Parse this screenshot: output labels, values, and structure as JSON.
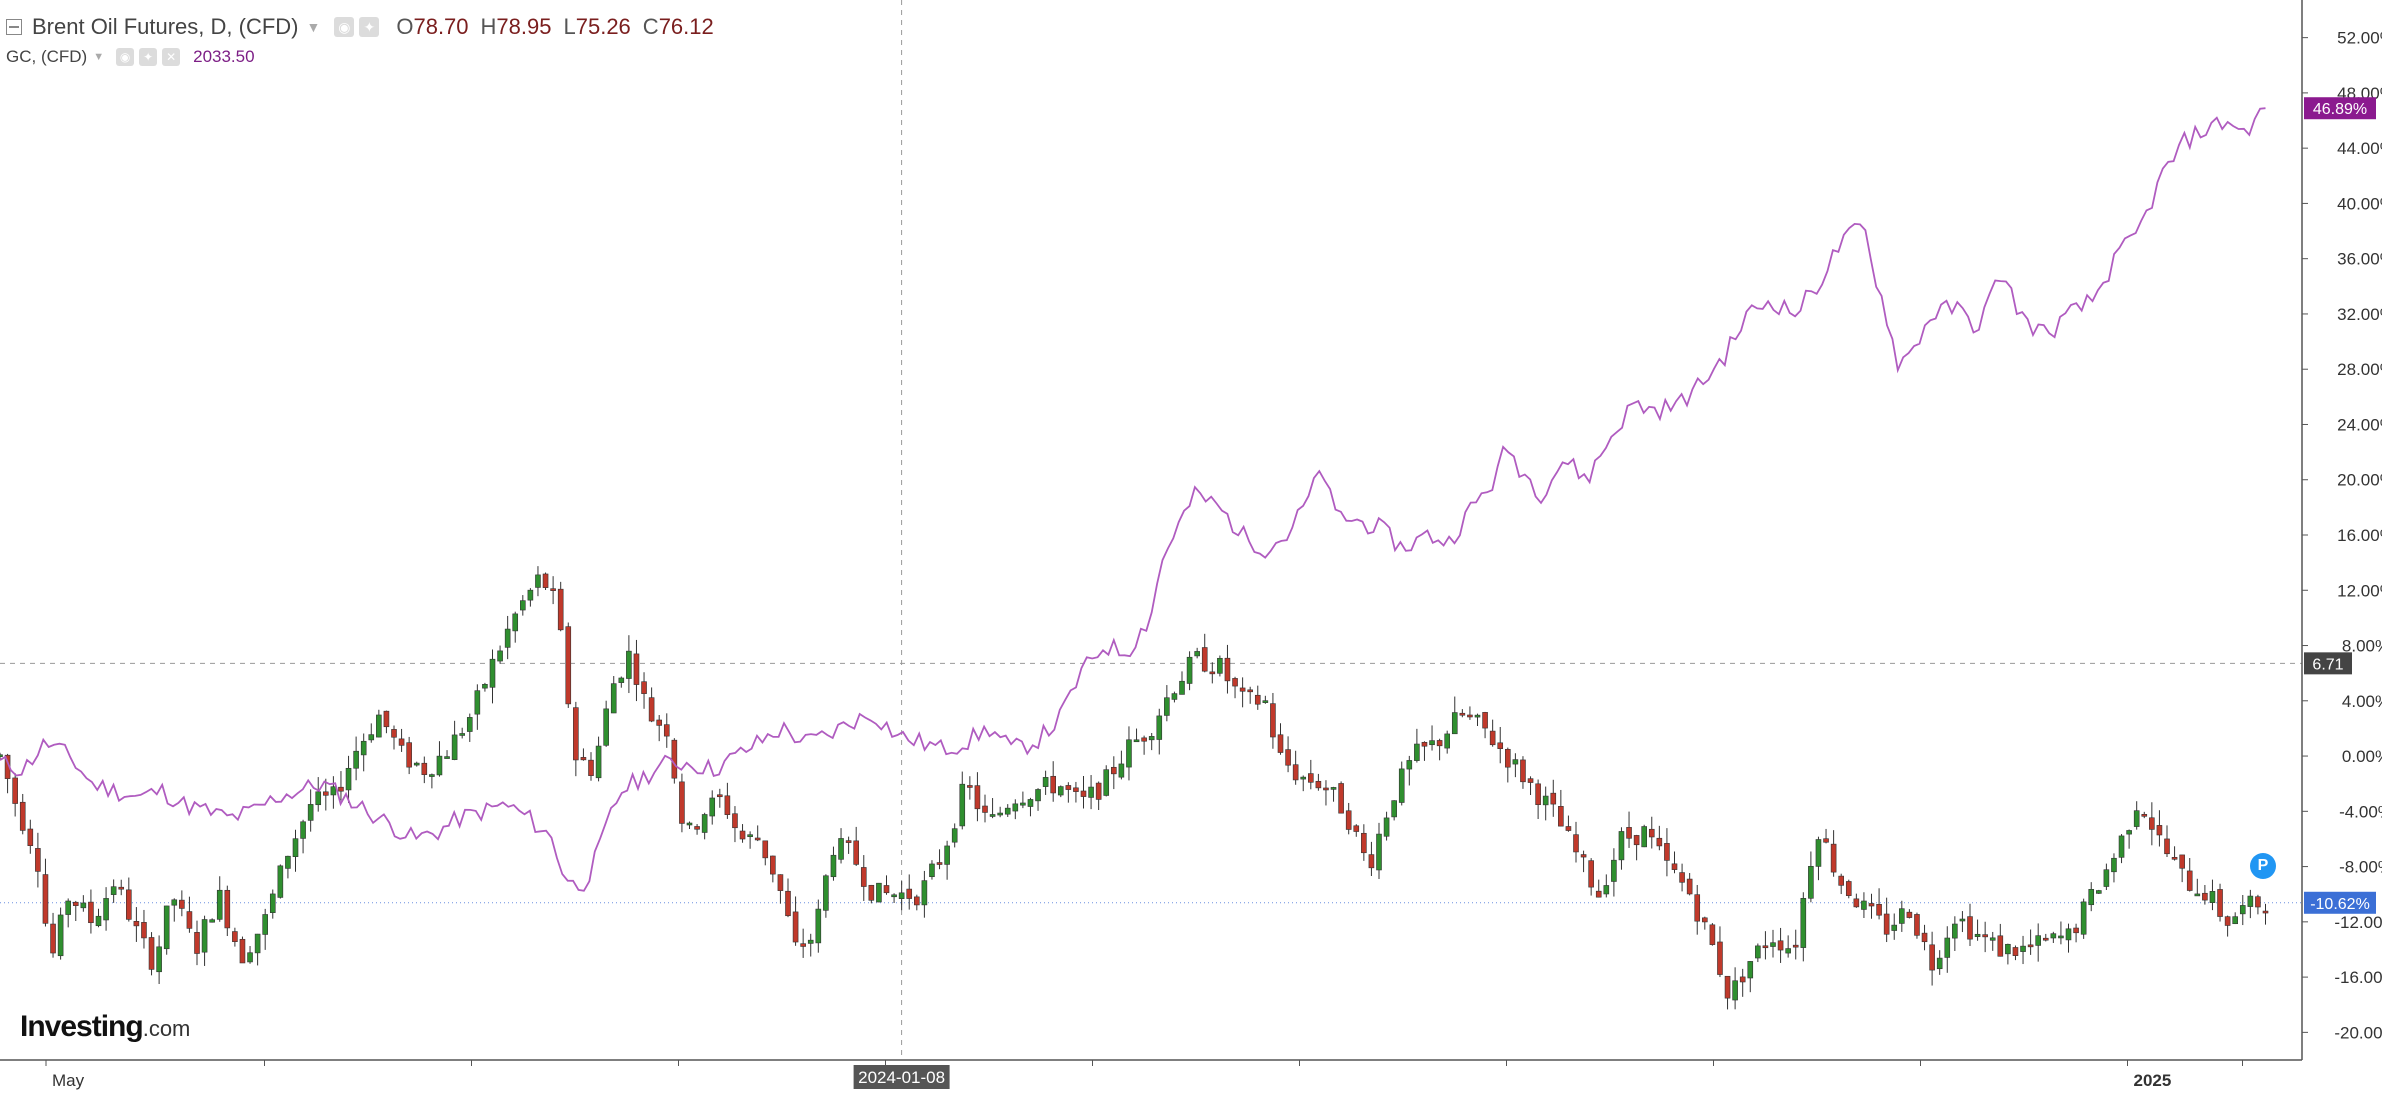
{
  "legend": {
    "main_symbol": "Brent Oil Futures, D, (CFD)",
    "o_label": "O",
    "o_value": "78.70",
    "h_label": "H",
    "h_value": "78.95",
    "l_label": "L",
    "l_value": "75.26",
    "c_label": "C",
    "c_value": "76.12",
    "compare_symbol": "GC, (CFD)",
    "compare_value": "2033.50"
  },
  "logo": {
    "main": "Investing",
    "suffix": ".com"
  },
  "marker": {
    "label": "P"
  },
  "colors": {
    "up": "#2f8f2f",
    "down": "#c0392b",
    "compare_line": "#b05cc0",
    "compare_tag": "#8b1a8f",
    "current_tag": "#3b6fd6",
    "crosshair_tag": "#444444",
    "grid": "#d8d8d8"
  },
  "chart_data": {
    "type": "line",
    "title": "Brent Oil Futures, D, (CFD)",
    "y_axis": {
      "unit": "percent change",
      "ylim": [
        -22,
        54
      ],
      "ticks": [
        "52.00%",
        "48.00%",
        "44.00%",
        "40.00%",
        "36.00%",
        "32.00%",
        "28.00%",
        "24.00%",
        "20.00%",
        "16.00%",
        "12.00%",
        "8.00%",
        "4.00%",
        "0.00%",
        "-4.00%",
        "-8.00%",
        "-12.00%",
        "-16.00%",
        "-20.00%"
      ],
      "tick_values": [
        52,
        48,
        44,
        40,
        36,
        32,
        28,
        24,
        20,
        16,
        12,
        8,
        4,
        0,
        -4,
        -8,
        -12,
        -16,
        -20
      ]
    },
    "x_axis": {
      "labels": [
        {
          "text": "May",
          "pos": 0.02
        },
        {
          "text": "2024-01-08",
          "pos": 0.392,
          "highlight": true
        },
        {
          "text": "2025",
          "pos": 0.925
        }
      ],
      "ticks": [
        0.02,
        0.115,
        0.205,
        0.295,
        0.385,
        0.475,
        0.565,
        0.655,
        0.745,
        0.835,
        0.925,
        0.975
      ]
    },
    "crosshair": {
      "x_pos": 0.392,
      "y_value": 6.71,
      "label": "6.71"
    },
    "last_values": [
      {
        "name": "GC, (CFD)",
        "value": 46.89,
        "label": "46.89%"
      },
      {
        "name": "Brent Oil Futures, D, (CFD)",
        "value": -10.62,
        "label": "-10.62%"
      }
    ],
    "series": [
      {
        "name": "Brent Oil Futures, D, (CFD)",
        "type": "candlestick",
        "path": [
          [
            0.0,
            0.0
          ],
          [
            0.008,
            -4.0
          ],
          [
            0.016,
            -7.0
          ],
          [
            0.022,
            -15.0
          ],
          [
            0.03,
            -10.0
          ],
          [
            0.04,
            -12.0
          ],
          [
            0.05,
            -9.0
          ],
          [
            0.06,
            -13.0
          ],
          [
            0.067,
            -15.0
          ],
          [
            0.075,
            -10.0
          ],
          [
            0.085,
            -14.0
          ],
          [
            0.095,
            -10.0
          ],
          [
            0.105,
            -14.5
          ],
          [
            0.115,
            -12.0
          ],
          [
            0.125,
            -7.0
          ],
          [
            0.135,
            -3.5
          ],
          [
            0.145,
            -3.0
          ],
          [
            0.155,
            0.5
          ],
          [
            0.165,
            3.0
          ],
          [
            0.175,
            0.0
          ],
          [
            0.185,
            -1.0
          ],
          [
            0.195,
            0.5
          ],
          [
            0.205,
            3.0
          ],
          [
            0.215,
            7.0
          ],
          [
            0.225,
            10.5
          ],
          [
            0.235,
            13.0
          ],
          [
            0.242,
            11.0
          ],
          [
            0.25,
            0.0
          ],
          [
            0.258,
            -1.0
          ],
          [
            0.266,
            5.0
          ],
          [
            0.274,
            7.5
          ],
          [
            0.282,
            3.0
          ],
          [
            0.29,
            2.0
          ],
          [
            0.298,
            -6.0
          ],
          [
            0.306,
            -4.0
          ],
          [
            0.314,
            -3.0
          ],
          [
            0.322,
            -6.0
          ],
          [
            0.33,
            -6.0
          ],
          [
            0.338,
            -9.0
          ],
          [
            0.346,
            -14.0
          ],
          [
            0.354,
            -13.0
          ],
          [
            0.362,
            -6.5
          ],
          [
            0.37,
            -7.0
          ],
          [
            0.38,
            -10.0
          ],
          [
            0.39,
            -10.0
          ],
          [
            0.4,
            -10.0
          ],
          [
            0.41,
            -7.0
          ],
          [
            0.42,
            -2.0
          ],
          [
            0.43,
            -5.0
          ],
          [
            0.44,
            -3.0
          ],
          [
            0.45,
            -2.5
          ],
          [
            0.46,
            -2.0
          ],
          [
            0.47,
            -3.5
          ],
          [
            0.48,
            -2.0
          ],
          [
            0.49,
            0.5
          ],
          [
            0.5,
            2.0
          ],
          [
            0.51,
            5.0
          ],
          [
            0.52,
            7.0
          ],
          [
            0.53,
            6.5
          ],
          [
            0.54,
            4.0
          ],
          [
            0.55,
            4.0
          ],
          [
            0.556,
            0.0
          ],
          [
            0.565,
            -1.5
          ],
          [
            0.575,
            -2.0
          ],
          [
            0.585,
            -4.0
          ],
          [
            0.595,
            -8.0
          ],
          [
            0.605,
            -3.0
          ],
          [
            0.615,
            0.0
          ],
          [
            0.625,
            1.0
          ],
          [
            0.635,
            3.0
          ],
          [
            0.645,
            2.0
          ],
          [
            0.655,
            0.0
          ],
          [
            0.665,
            -2.0
          ],
          [
            0.675,
            -4.0
          ],
          [
            0.685,
            -7.0
          ],
          [
            0.695,
            -10.0
          ],
          [
            0.705,
            -6.0
          ],
          [
            0.715,
            -5.5
          ],
          [
            0.725,
            -8.0
          ],
          [
            0.735,
            -10.0
          ],
          [
            0.745,
            -14.0
          ],
          [
            0.752,
            -17.5
          ],
          [
            0.76,
            -15.0
          ],
          [
            0.77,
            -13.0
          ],
          [
            0.78,
            -14.0
          ],
          [
            0.79,
            -5.0
          ],
          [
            0.8,
            -9.0
          ],
          [
            0.81,
            -11.0
          ],
          [
            0.82,
            -12.5
          ],
          [
            0.83,
            -11.0
          ],
          [
            0.84,
            -15.0
          ],
          [
            0.85,
            -11.5
          ],
          [
            0.86,
            -13.0
          ],
          [
            0.87,
            -14.0
          ],
          [
            0.88,
            -14.0
          ],
          [
            0.89,
            -13.5
          ],
          [
            0.9,
            -13.0
          ],
          [
            0.91,
            -10.0
          ],
          [
            0.92,
            -7.0
          ],
          [
            0.93,
            -3.0
          ],
          [
            0.94,
            -6.5
          ],
          [
            0.95,
            -9.0
          ],
          [
            0.96,
            -10.0
          ],
          [
            0.968,
            -12.0
          ],
          [
            0.976,
            -11.0
          ],
          [
            0.985,
            -10.5
          ]
        ]
      },
      {
        "name": "GC, (CFD)",
        "type": "line",
        "path": [
          [
            0.0,
            -0.5
          ],
          [
            0.01,
            -1.0
          ],
          [
            0.02,
            1.0
          ],
          [
            0.03,
            0.0
          ],
          [
            0.04,
            -2.0
          ],
          [
            0.05,
            -2.5
          ],
          [
            0.06,
            -3.0
          ],
          [
            0.07,
            -2.5
          ],
          [
            0.08,
            -3.5
          ],
          [
            0.09,
            -4.0
          ],
          [
            0.1,
            -4.5
          ],
          [
            0.11,
            -4.0
          ],
          [
            0.12,
            -3.0
          ],
          [
            0.13,
            -2.5
          ],
          [
            0.14,
            -2.0
          ],
          [
            0.15,
            -3.0
          ],
          [
            0.16,
            -4.0
          ],
          [
            0.17,
            -5.0
          ],
          [
            0.18,
            -6.0
          ],
          [
            0.19,
            -5.5
          ],
          [
            0.2,
            -4.5
          ],
          [
            0.21,
            -4.0
          ],
          [
            0.22,
            -3.5
          ],
          [
            0.23,
            -4.5
          ],
          [
            0.24,
            -6.0
          ],
          [
            0.245,
            -8.5
          ],
          [
            0.25,
            -9.5
          ],
          [
            0.255,
            -9.0
          ],
          [
            0.26,
            -7.0
          ],
          [
            0.265,
            -4.5
          ],
          [
            0.27,
            -2.5
          ],
          [
            0.28,
            -1.5
          ],
          [
            0.29,
            -0.5
          ],
          [
            0.3,
            -0.5
          ],
          [
            0.31,
            -1.0
          ],
          [
            0.32,
            0.0
          ],
          [
            0.33,
            1.0
          ],
          [
            0.34,
            2.0
          ],
          [
            0.35,
            1.0
          ],
          [
            0.36,
            1.5
          ],
          [
            0.37,
            2.5
          ],
          [
            0.38,
            3.0
          ],
          [
            0.39,
            1.5
          ],
          [
            0.4,
            1.0
          ],
          [
            0.41,
            0.5
          ],
          [
            0.42,
            1.0
          ],
          [
            0.43,
            2.0
          ],
          [
            0.44,
            0.5
          ],
          [
            0.45,
            1.0
          ],
          [
            0.46,
            2.5
          ],
          [
            0.47,
            6.0
          ],
          [
            0.48,
            8.0
          ],
          [
            0.49,
            7.5
          ],
          [
            0.5,
            10.0
          ],
          [
            0.505,
            14.0
          ],
          [
            0.51,
            16.0
          ],
          [
            0.52,
            19.0
          ],
          [
            0.53,
            18.0
          ],
          [
            0.54,
            16.0
          ],
          [
            0.55,
            15.0
          ],
          [
            0.56,
            16.0
          ],
          [
            0.57,
            19.0
          ],
          [
            0.575,
            21.0
          ],
          [
            0.58,
            17.5
          ],
          [
            0.59,
            17.0
          ],
          [
            0.6,
            16.5
          ],
          [
            0.61,
            15.0
          ],
          [
            0.62,
            16.0
          ],
          [
            0.63,
            15.5
          ],
          [
            0.64,
            18.0
          ],
          [
            0.65,
            20.0
          ],
          [
            0.655,
            22.5
          ],
          [
            0.66,
            21.0
          ],
          [
            0.67,
            19.0
          ],
          [
            0.68,
            21.5
          ],
          [
            0.69,
            20.0
          ],
          [
            0.7,
            23.0
          ],
          [
            0.71,
            25.5
          ],
          [
            0.72,
            25.0
          ],
          [
            0.73,
            25.5
          ],
          [
            0.74,
            27.0
          ],
          [
            0.75,
            29.0
          ],
          [
            0.76,
            32.0
          ],
          [
            0.77,
            33.0
          ],
          [
            0.78,
            32.0
          ],
          [
            0.79,
            34.0
          ],
          [
            0.8,
            37.0
          ],
          [
            0.81,
            38.5
          ],
          [
            0.815,
            35.0
          ],
          [
            0.82,
            32.0
          ],
          [
            0.825,
            28.5
          ],
          [
            0.83,
            29.0
          ],
          [
            0.84,
            32.0
          ],
          [
            0.85,
            32.5
          ],
          [
            0.86,
            31.0
          ],
          [
            0.87,
            35.0
          ],
          [
            0.88,
            31.5
          ],
          [
            0.89,
            30.5
          ],
          [
            0.9,
            32.0
          ],
          [
            0.91,
            33.0
          ],
          [
            0.92,
            36.0
          ],
          [
            0.93,
            38.0
          ],
          [
            0.94,
            42.0
          ],
          [
            0.95,
            44.5
          ],
          [
            0.96,
            45.5
          ],
          [
            0.97,
            46.0
          ],
          [
            0.975,
            45.0
          ],
          [
            0.985,
            46.89
          ]
        ]
      }
    ]
  }
}
